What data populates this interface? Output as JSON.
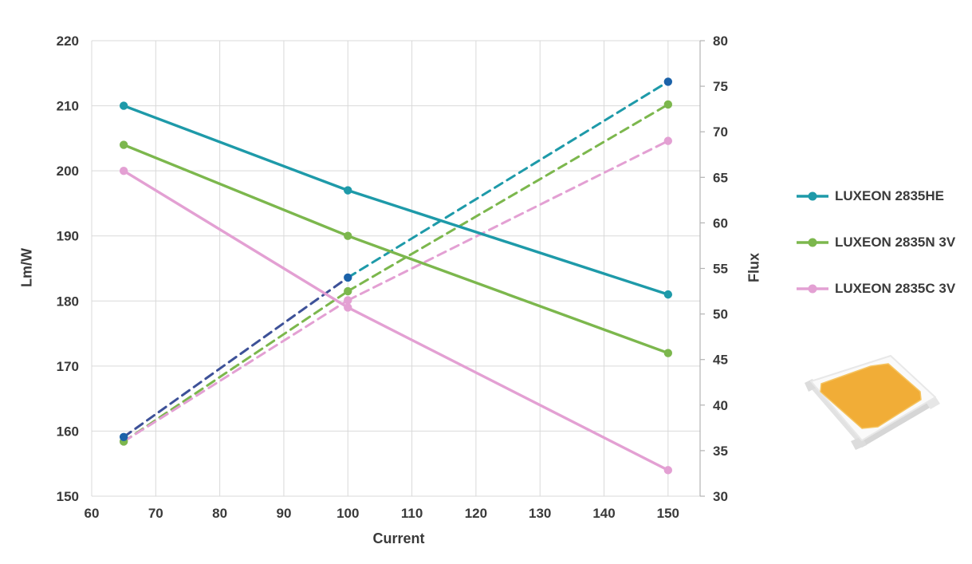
{
  "chart_data": {
    "type": "line",
    "title": "",
    "currents": [
      65,
      100,
      150
    ],
    "x": {
      "label": "Current",
      "min": 60,
      "max": 155,
      "tick_min": 60,
      "tick_max": 150,
      "tick_step": 10
    },
    "y_left": {
      "label": "Lm/W",
      "min": 150,
      "max": 220,
      "tick_step": 10
    },
    "y_right": {
      "label": "Flux",
      "min": 30,
      "max": 80,
      "tick_step": 5
    },
    "grid": true,
    "grid_color": "#d9d9d9",
    "axis_line_color": "#b3b3b3",
    "text_color": "#3a3a3a",
    "legend_position": "right",
    "series": [
      {
        "name": "LUXEON 2835HE",
        "color": "#1e9aa9",
        "efficacy": {
          "axis": "left",
          "style": "solid",
          "y": [
            210,
            197,
            181
          ]
        },
        "flux": {
          "axis": "right",
          "style": "dashed",
          "y": [
            36.5,
            54,
            75.5
          ],
          "marker_color": "#1b62a9",
          "segment_colors": [
            "#3d5198",
            "#1e9aa9"
          ]
        }
      },
      {
        "name": "LUXEON 2835N 3V",
        "color": "#7cb74d",
        "efficacy": {
          "axis": "left",
          "style": "solid",
          "y": [
            204,
            190,
            172
          ]
        },
        "flux": {
          "axis": "right",
          "style": "dashed",
          "y": [
            36,
            52.5,
            73
          ]
        }
      },
      {
        "name": "LUXEON 2835C 3V",
        "color": "#e3a0d3",
        "efficacy": {
          "axis": "left",
          "style": "solid",
          "y": [
            200,
            179,
            154
          ]
        },
        "flux": {
          "axis": "right",
          "style": "dashed",
          "y": [
            36,
            51.5,
            69
          ]
        }
      }
    ]
  },
  "image": {
    "led_chip_name": "luxeon-2835-led-package",
    "led_chip_colors": {
      "phosphor": "#f1ad37",
      "body": "#fafafa",
      "shade": "#d9d9d9"
    }
  }
}
